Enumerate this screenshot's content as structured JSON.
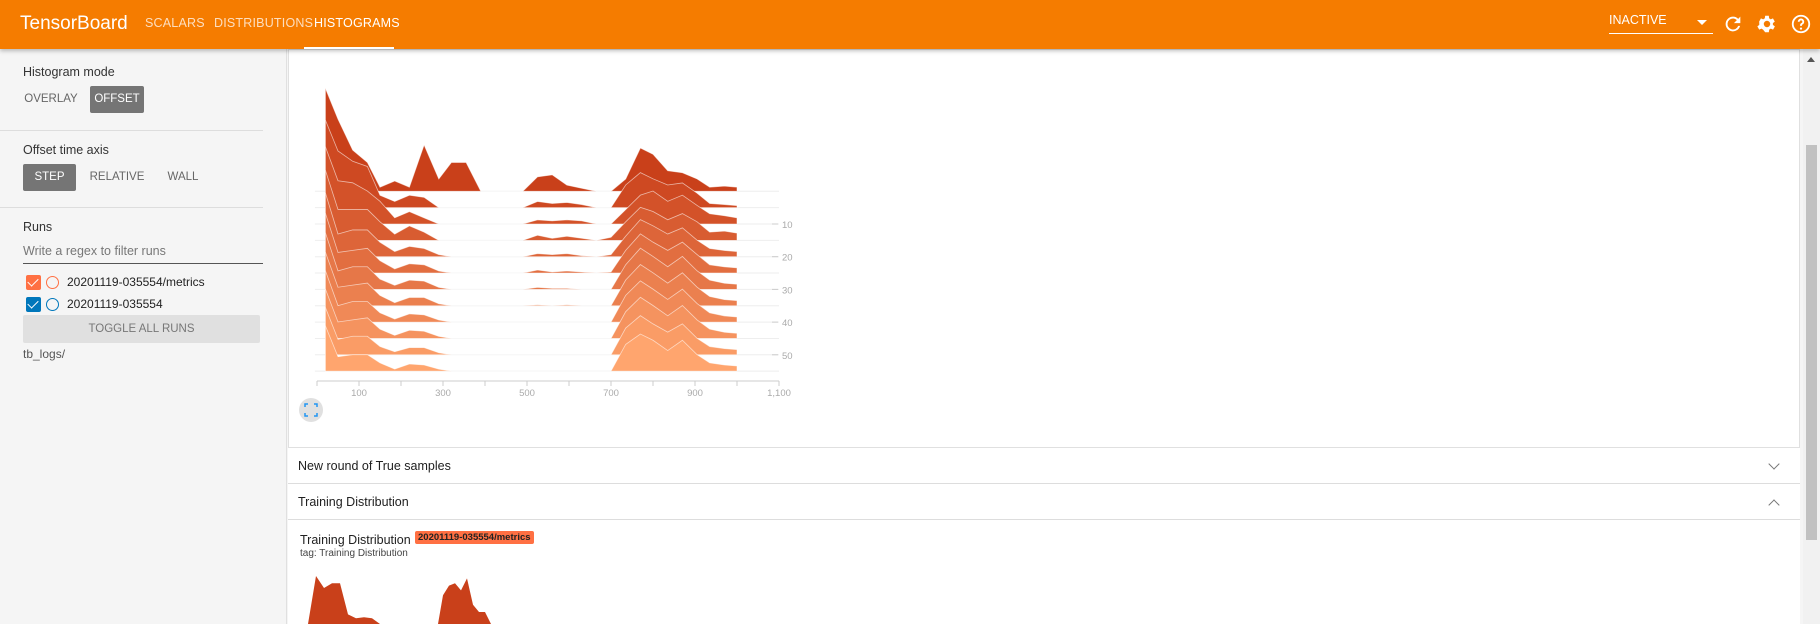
{
  "header": {
    "title": "TensorBoard",
    "tabs": [
      {
        "label": "SCALARS"
      },
      {
        "label": "DISTRIBUTIONS"
      },
      {
        "label": "HISTOGRAMS",
        "active": true
      }
    ],
    "run_selector": "INACTIVE",
    "icons": [
      "refresh-icon",
      "settings-gear-icon",
      "help-icon"
    ],
    "color": "#f57c00"
  },
  "sidebar": {
    "histogram_mode": {
      "label": "Histogram mode",
      "options": [
        "OVERLAY",
        "OFFSET"
      ],
      "selected": "OFFSET"
    },
    "offset_axis": {
      "label": "Offset time axis",
      "options": [
        "STEP",
        "RELATIVE",
        "WALL"
      ],
      "selected": "STEP"
    },
    "runs": {
      "label": "Runs",
      "filter_placeholder": "Write a regex to filter runs",
      "items": [
        {
          "name": "20201119-035554/metrics",
          "checked": true,
          "color": "#ff7043"
        },
        {
          "name": "20201119-035554",
          "checked": true,
          "color": "#0077bb"
        }
      ],
      "toggle_label": "TOGGLE ALL RUNS",
      "logdir": "tb_logs/"
    }
  },
  "sections": [
    {
      "title": "New round of True samples",
      "expanded": false
    },
    {
      "title": "Training Distribution",
      "expanded": true,
      "card": {
        "title": "Training Distribution",
        "tag": "tag: Training Distribution",
        "run_badge": "20201119-035554/metrics"
      }
    }
  ],
  "chart_data": [
    {
      "type": "area",
      "mode": "offset",
      "x_ticks": [
        "100",
        "300",
        "500",
        "700",
        "900",
        "1,100"
      ],
      "xlim": [
        0,
        1100
      ],
      "y_ticks": [
        "10",
        "20",
        "30",
        "40",
        "50"
      ],
      "colors": {
        "first": "#c9401a",
        "last": "#ffa56e"
      },
      "x": [
        20,
        50,
        85,
        120,
        150,
        185,
        220,
        255,
        290,
        320,
        355,
        390,
        420,
        455,
        490,
        525,
        560,
        595,
        630,
        665,
        700,
        735,
        770,
        800,
        835,
        870,
        905,
        935,
        970,
        1000
      ],
      "series": [
        {
          "step": 0,
          "values": [
            100,
            70,
            40,
            28,
            4,
            10,
            4,
            45,
            12,
            28,
            28,
            0,
            0,
            0,
            0,
            14,
            16,
            6,
            3,
            0,
            0,
            12,
            42,
            36,
            20,
            18,
            12,
            4,
            5,
            4
          ]
        },
        {
          "step": 5,
          "values": [
            85,
            55,
            45,
            40,
            12,
            6,
            12,
            10,
            0,
            0,
            0,
            0,
            0,
            0,
            0,
            6,
            4,
            5,
            3,
            0,
            0,
            22,
            34,
            28,
            22,
            24,
            14,
            4,
            3,
            2
          ]
        },
        {
          "step": 10,
          "values": [
            75,
            42,
            40,
            32,
            22,
            6,
            12,
            6,
            0,
            0,
            0,
            0,
            0,
            0,
            0,
            4,
            3,
            4,
            3,
            0,
            0,
            14,
            28,
            32,
            22,
            28,
            18,
            10,
            8,
            6
          ]
        },
        {
          "step": 15,
          "values": [
            68,
            30,
            30,
            30,
            18,
            6,
            14,
            8,
            0,
            0,
            0,
            0,
            0,
            0,
            0,
            5,
            2,
            4,
            2,
            0,
            3,
            18,
            32,
            28,
            20,
            26,
            18,
            8,
            9,
            7
          ]
        },
        {
          "step": 20,
          "values": [
            62,
            22,
            26,
            26,
            14,
            5,
            10,
            8,
            2,
            0,
            0,
            0,
            0,
            0,
            0,
            3,
            2,
            3,
            1,
            0,
            2,
            20,
            36,
            30,
            22,
            28,
            16,
            8,
            6,
            5
          ]
        },
        {
          "step": 25,
          "values": [
            58,
            20,
            22,
            24,
            12,
            4,
            9,
            8,
            2,
            0,
            0,
            0,
            0,
            0,
            0,
            3,
            1,
            2,
            1,
            0,
            1,
            22,
            38,
            30,
            22,
            30,
            18,
            8,
            6,
            5
          ]
        },
        {
          "step": 30,
          "values": [
            55,
            18,
            22,
            22,
            10,
            4,
            9,
            8,
            2,
            0,
            0,
            0,
            0,
            0,
            0,
            2,
            1,
            1,
            0,
            0,
            0,
            24,
            40,
            32,
            22,
            32,
            18,
            9,
            6,
            5
          ]
        },
        {
          "step": 35,
          "values": [
            52,
            18,
            20,
            22,
            10,
            3,
            8,
            8,
            2,
            0,
            0,
            0,
            0,
            0,
            0,
            1,
            0,
            1,
            0,
            0,
            0,
            25,
            40,
            32,
            22,
            32,
            18,
            9,
            6,
            5
          ]
        },
        {
          "step": 40,
          "values": [
            50,
            16,
            20,
            20,
            9,
            3,
            8,
            7,
            2,
            0,
            0,
            0,
            0,
            0,
            0,
            0,
            0,
            0,
            0,
            0,
            0,
            26,
            40,
            32,
            22,
            32,
            18,
            9,
            6,
            5
          ]
        },
        {
          "step": 45,
          "values": [
            48,
            16,
            18,
            20,
            9,
            3,
            8,
            7,
            2,
            0,
            0,
            0,
            0,
            0,
            0,
            0,
            0,
            0,
            0,
            0,
            0,
            26,
            40,
            32,
            22,
            32,
            18,
            9,
            6,
            5
          ]
        },
        {
          "step": 50,
          "values": [
            46,
            15,
            18,
            18,
            8,
            3,
            7,
            7,
            2,
            0,
            0,
            0,
            0,
            0,
            0,
            0,
            0,
            0,
            0,
            0,
            0,
            26,
            38,
            30,
            22,
            30,
            16,
            8,
            6,
            5
          ]
        },
        {
          "step": 55,
          "values": [
            44,
            14,
            16,
            16,
            8,
            2,
            7,
            6,
            2,
            0,
            0,
            0,
            0,
            0,
            0,
            0,
            0,
            0,
            0,
            0,
            0,
            26,
            36,
            30,
            20,
            30,
            16,
            8,
            6,
            5
          ]
        }
      ]
    },
    {
      "type": "area",
      "mode": "offset",
      "color": "#c9401a",
      "x": [
        0,
        5,
        10,
        15,
        20,
        25,
        30,
        35,
        40,
        45,
        50,
        55,
        60,
        65,
        70,
        75,
        80
      ],
      "values": [
        0,
        100,
        75,
        85,
        85,
        20,
        12,
        14,
        12,
        0,
        0,
        0,
        0,
        0,
        0,
        0,
        0
      ],
      "values2": [
        60,
        80,
        85,
        70,
        95,
        40,
        25,
        25,
        0
      ]
    }
  ]
}
